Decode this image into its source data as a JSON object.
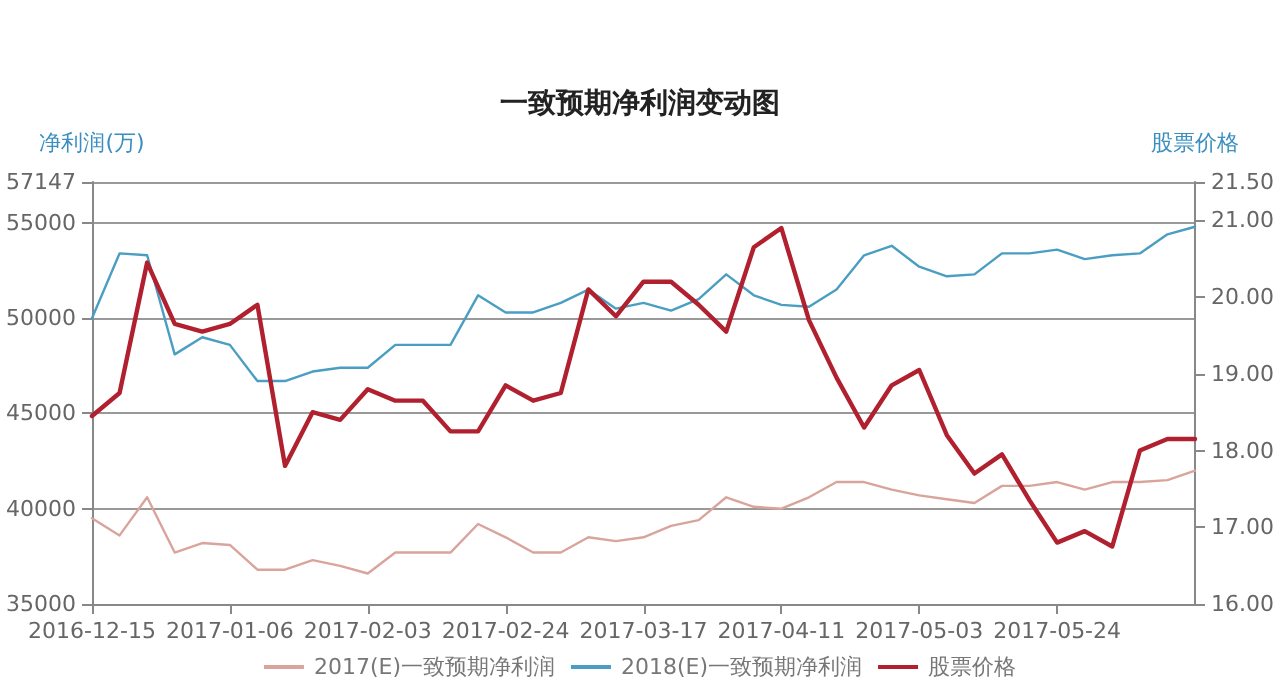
{
  "chart_data": {
    "type": "line",
    "title": "一致预期净利润变动图",
    "ylabel": "净利润(万)",
    "y2label": "股票价格",
    "categories": [
      "2016-12-15",
      null,
      null,
      null,
      null,
      "2017-01-06",
      null,
      null,
      null,
      null,
      "2017-02-03",
      null,
      null,
      null,
      null,
      "2017-02-24",
      null,
      null,
      null,
      null,
      "2017-03-17",
      null,
      null,
      null,
      null,
      "2017-04-11",
      null,
      null,
      null,
      null,
      "2017-05-03",
      null,
      null,
      null,
      null,
      "2017-05-24",
      null,
      null,
      null,
      null,
      null
    ],
    "series": [
      {
        "name": "2017(E)一致预期净利润",
        "color": "#d9a49c",
        "values": [
          39500,
          38600,
          40600,
          37700,
          38200,
          38100,
          36800,
          36800,
          37300,
          37000,
          36600,
          37700,
          37700,
          37700,
          39200,
          38500,
          37700,
          37700,
          38500,
          38300,
          38500,
          39100,
          39400,
          40600,
          40100,
          40000,
          40600,
          41400,
          41400,
          41000,
          40700,
          40500,
          40300,
          41200,
          41200,
          41400,
          41000,
          41400,
          41400,
          41500,
          42000
        ]
      },
      {
        "name": "2018(E)一致预期净利润",
        "color": "#4a9ec2",
        "values": [
          50000,
          53400,
          53300,
          48100,
          49000,
          48600,
          46700,
          46700,
          47200,
          47400,
          47400,
          48600,
          48600,
          48600,
          51200,
          50300,
          50300,
          50800,
          51500,
          50500,
          50800,
          50400,
          51000,
          52300,
          51200,
          50700,
          50600,
          51500,
          53300,
          53800,
          52700,
          52200,
          52300,
          53400,
          53400,
          53600,
          53100,
          53300,
          53400,
          54400,
          54800
        ]
      },
      {
        "name": "股票价格",
        "color": "#b0202e",
        "axis": "y2",
        "values": [
          18.45,
          18.75,
          20.45,
          19.65,
          19.55,
          19.65,
          19.9,
          17.8,
          18.5,
          18.4,
          18.8,
          18.65,
          18.65,
          18.25,
          18.25,
          18.85,
          18.65,
          18.75,
          20.1,
          19.75,
          20.2,
          20.2,
          19.9,
          19.55,
          20.65,
          20.9,
          19.7,
          18.95,
          18.3,
          18.85,
          19.05,
          18.2,
          17.7,
          17.95,
          17.35,
          16.8,
          16.95,
          16.75,
          18.0,
          18.15,
          18.15
        ]
      }
    ],
    "ylim": [
      35000,
      57147
    ],
    "yticks": [
      35000,
      40000,
      45000,
      50000,
      55000,
      57147
    ],
    "y2lim": [
      16,
      21.5
    ],
    "y2ticks": [
      {
        "value": 16,
        "label": "16.00"
      },
      {
        "value": 17,
        "label": "17.00"
      },
      {
        "value": 18,
        "label": "18.00"
      },
      {
        "value": 19,
        "label": "19.00"
      },
      {
        "value": 20,
        "label": "20.00"
      },
      {
        "value": 21,
        "label": "21.00"
      },
      {
        "value": 21.5,
        "label": "21.50"
      }
    ],
    "grid": "y",
    "legend": "bottom",
    "marker": "none",
    "line_style": "solid"
  }
}
